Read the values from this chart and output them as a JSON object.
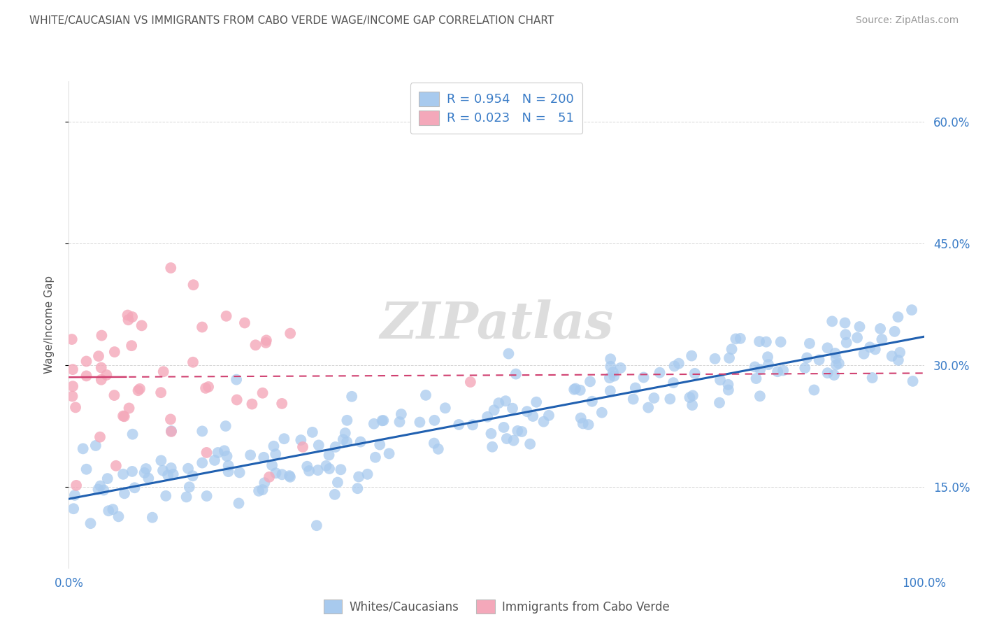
{
  "title": "WHITE/CAUCASIAN VS IMMIGRANTS FROM CABO VERDE WAGE/INCOME GAP CORRELATION CHART",
  "source": "Source: ZipAtlas.com",
  "ylabel": "Wage/Income Gap",
  "blue_R": 0.954,
  "blue_N": 200,
  "pink_R": 0.023,
  "pink_N": 51,
  "blue_color": "#A8CAEE",
  "pink_color": "#F4A8BA",
  "blue_line_color": "#2060B0",
  "pink_line_color": "#D04070",
  "legend_text_color": "#3A7CC7",
  "axis_tick_color": "#3A7CC7",
  "ylabel_color": "#555555",
  "title_color": "#555555",
  "source_color": "#999999",
  "watermark_color": "#DDDDDD",
  "background_color": "#FFFFFF",
  "grid_color": "#CCCCCC",
  "xlim": [
    0.0,
    1.0
  ],
  "ylim": [
    0.05,
    0.65
  ],
  "right_yticks": [
    0.15,
    0.3,
    0.45,
    0.6
  ],
  "right_yticklabels": [
    "15.0%",
    "30.0%",
    "45.0%",
    "60.0%"
  ],
  "blue_intercept": 0.135,
  "blue_slope": 0.2,
  "blue_noise": 0.028,
  "pink_intercept": 0.285,
  "pink_slope": 0.005,
  "pink_noise": 0.065,
  "seed_blue": 42,
  "seed_pink": 7
}
